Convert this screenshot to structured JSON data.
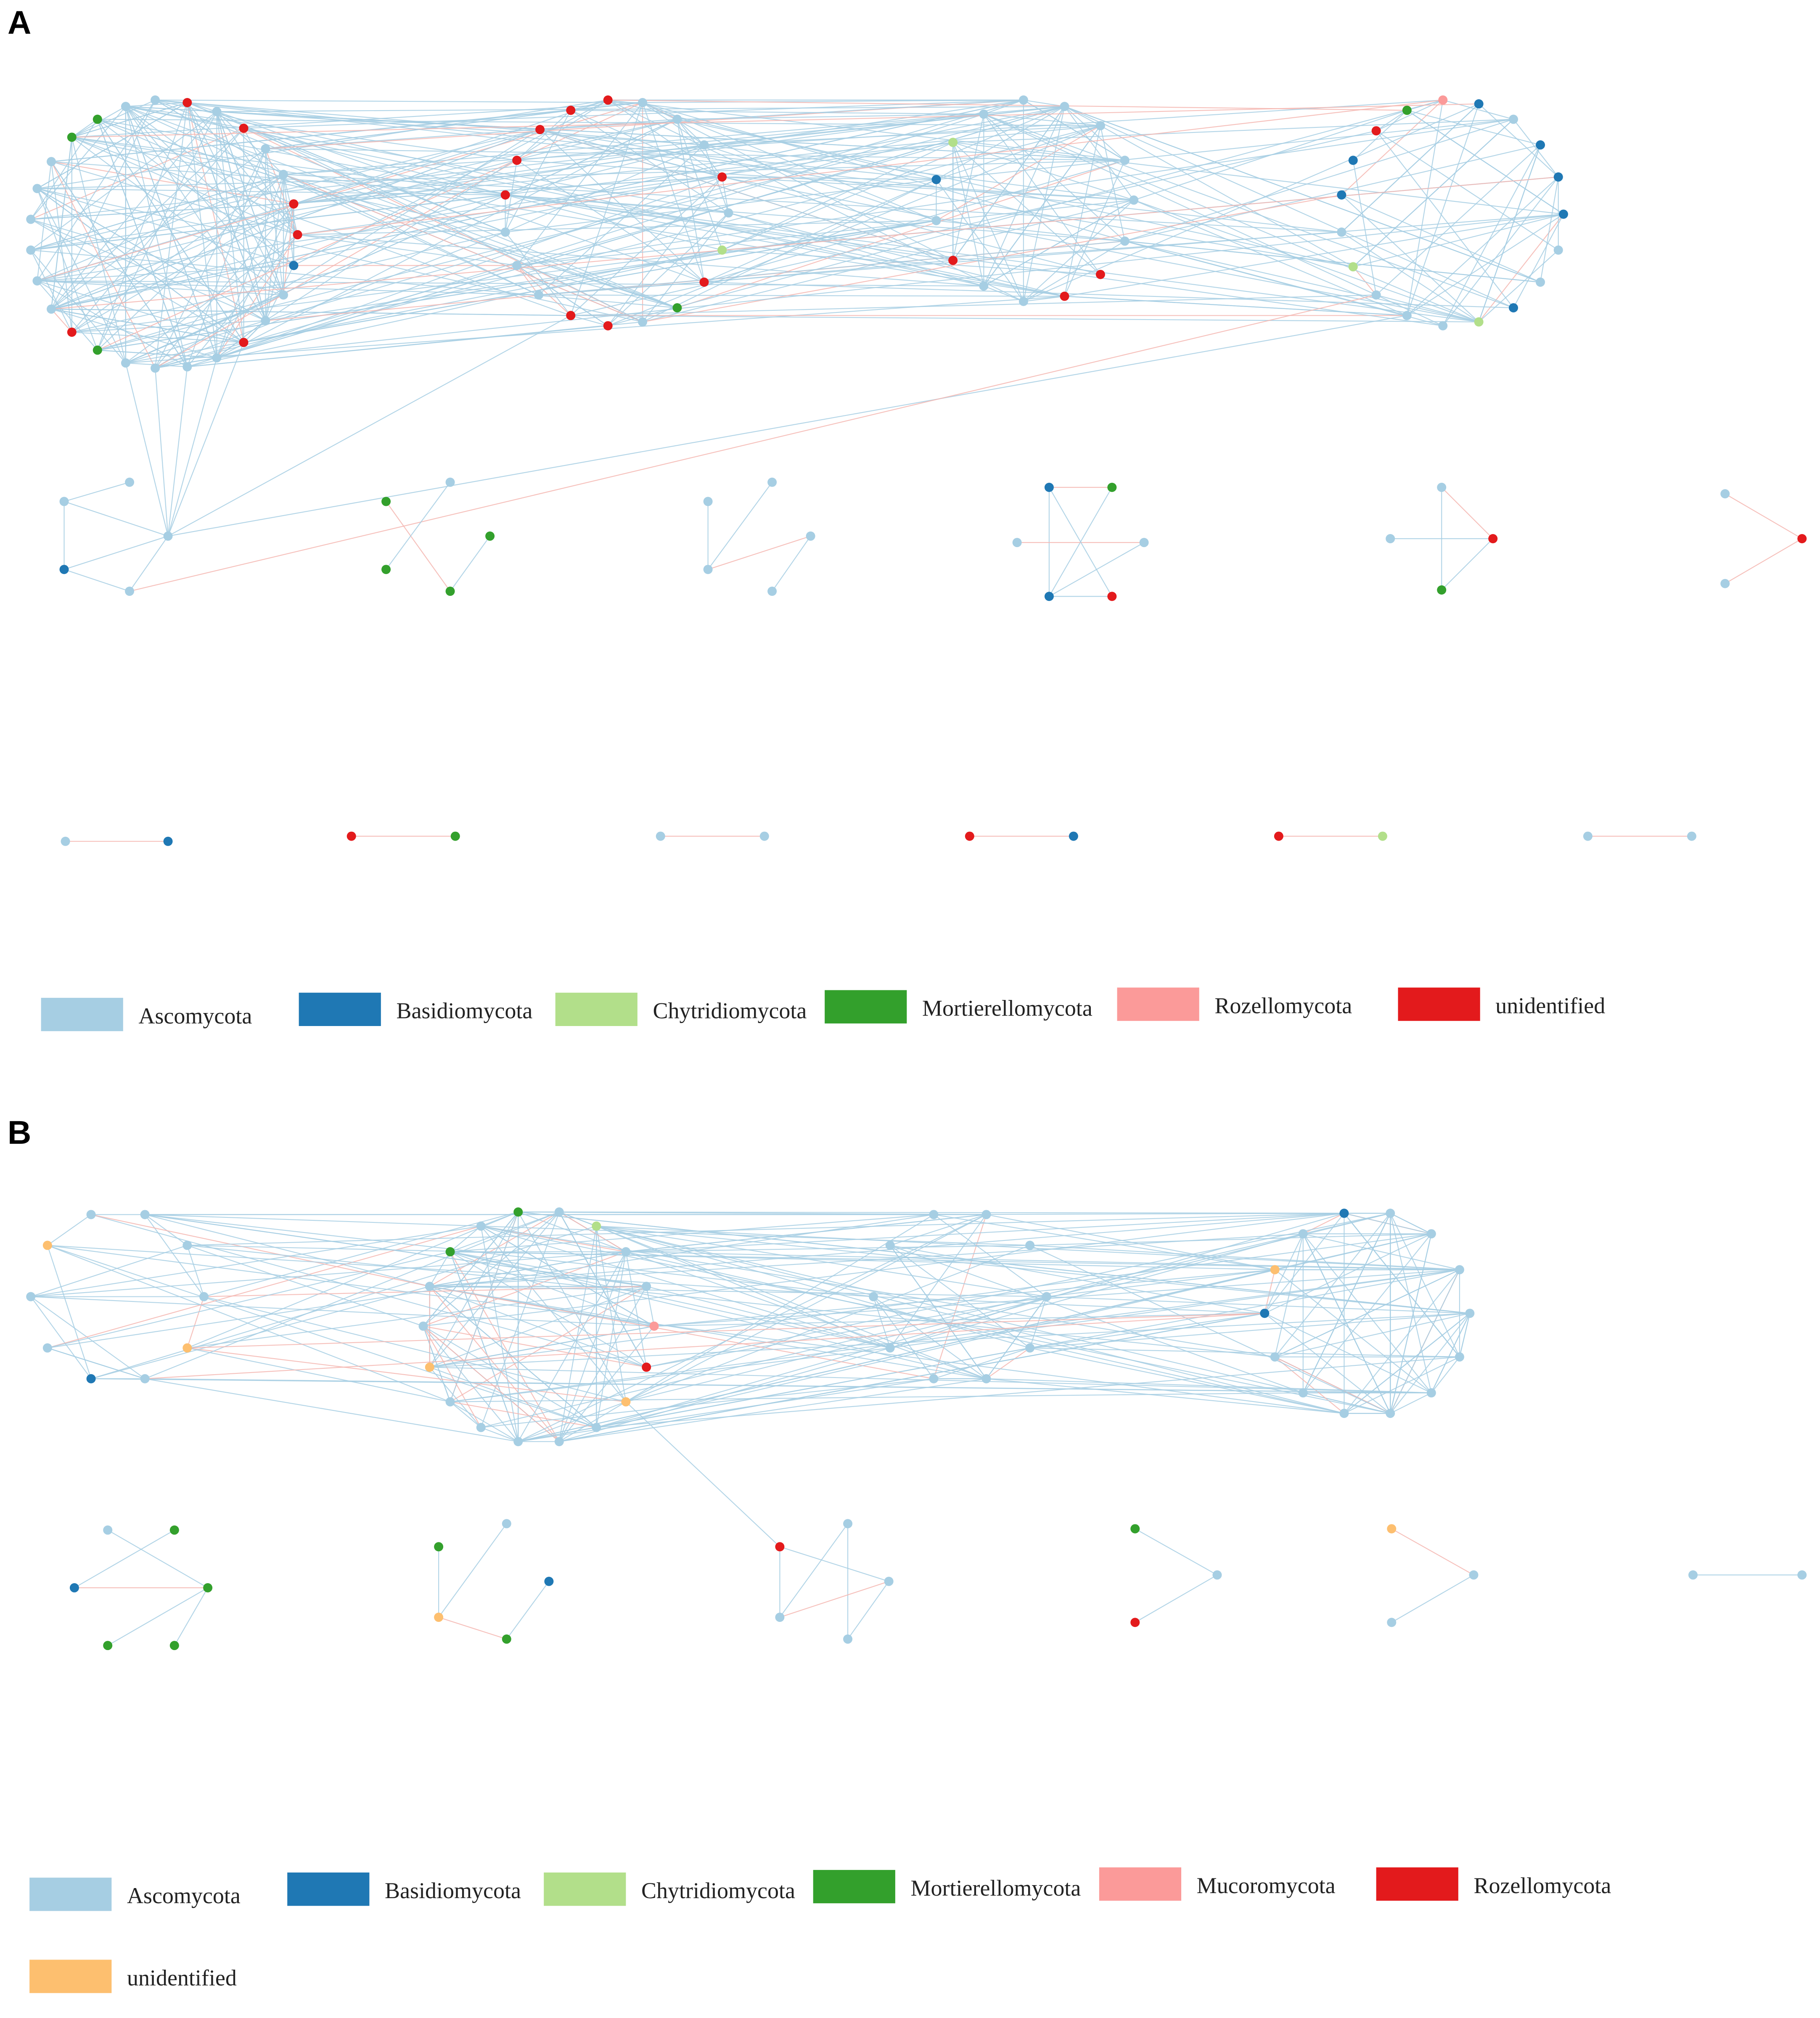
{
  "colors": {
    "Ascomycota": "#a6cee3",
    "Basidiomycota": "#1f78b4",
    "Chytridiomycota": "#b2df8a",
    "Mortierellomycota": "#33a02c",
    "Rozellomycota": "#fb9a99",
    "Mucoromycota": "#fb9a99",
    "unidentified": "#e31a1c",
    "unidentified_B": "#fdbf6f",
    "Rozellomycota_B": "#e31a1c",
    "edge_positive": "#a6cee3",
    "edge_negative": "#f4b6b0"
  },
  "panels": [
    {
      "letter": "A",
      "legend": [
        {
          "label": "Ascomycota",
          "color": "#a6cee3"
        },
        {
          "label": "Basidiomycota",
          "color": "#1f78b4"
        },
        {
          "label": "Chytridiomycota",
          "color": "#b2df8a"
        },
        {
          "label": "Mortierellomycota",
          "color": "#33a02c"
        },
        {
          "label": "Rozellomycota",
          "color": "#fb9a99"
        },
        {
          "label": "unidentified",
          "color": "#e31a1c"
        }
      ]
    },
    {
      "letter": "B",
      "legend": [
        {
          "label": "Ascomycota",
          "color": "#a6cee3"
        },
        {
          "label": "Basidiomycota",
          "color": "#1f78b4"
        },
        {
          "label": "Chytridiomycota",
          "color": "#b2df8a"
        },
        {
          "label": "Mortierellomycota",
          "color": "#33a02c"
        },
        {
          "label": "Mucoromycota",
          "color": "#fb9a99"
        },
        {
          "label": "Rozellomycota",
          "color": "#e31a1c"
        },
        {
          "label": "unidentified",
          "color": "#fdbf6f"
        }
      ]
    }
  ]
}
